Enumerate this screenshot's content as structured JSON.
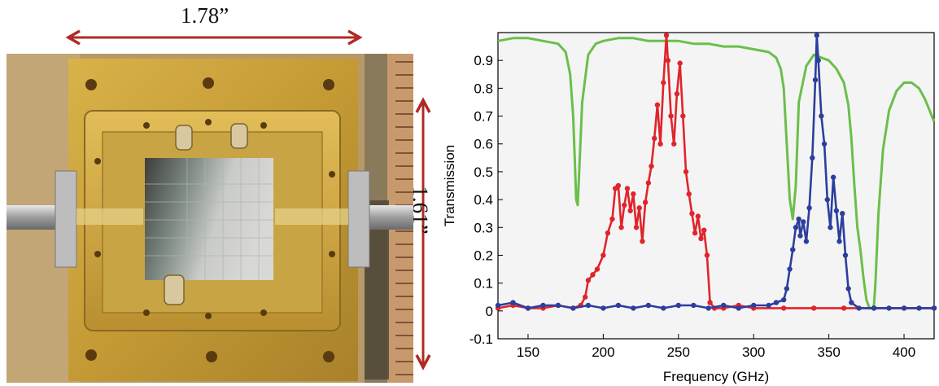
{
  "figure": {
    "width_label": "1.78”",
    "height_label": "1.61”",
    "arrow_color": "#b02a23"
  },
  "photo": {
    "subject": "gold-plated-waveguide-filter-housing"
  },
  "chart_data": {
    "type": "line",
    "title": "",
    "xlabel": "Frequency  (GHz)",
    "ylabel": "Transmission",
    "xlim": [
      130,
      420
    ],
    "ylim": [
      -0.1,
      1.0
    ],
    "xticks": [
      150,
      200,
      250,
      300,
      350,
      400
    ],
    "yticks": [
      -0.1,
      0,
      0.1,
      0.2,
      0.3,
      0.4,
      0.5,
      0.6,
      0.7,
      0.8,
      0.9
    ],
    "ytick_labels": [
      "-0.1",
      "0",
      "0.1",
      "0.2",
      "0.3",
      "0.4",
      "0.5",
      "0.6",
      "0.7",
      "0.8",
      "0.9"
    ],
    "grid": false,
    "legend": "none",
    "background": "#f4f4f4",
    "series": [
      {
        "color": "#6abf4b",
        "marker": false,
        "x": [
          130,
          140,
          150,
          160,
          170,
          175,
          178,
          180,
          181,
          182,
          183,
          184,
          186,
          190,
          195,
          200,
          210,
          220,
          230,
          240,
          250,
          260,
          270,
          280,
          290,
          300,
          310,
          315,
          318,
          320,
          322,
          324,
          326,
          328,
          330,
          335,
          340,
          345,
          350,
          355,
          360,
          363,
          365,
          367,
          369,
          371,
          373,
          375,
          377,
          379,
          380,
          381,
          383,
          386,
          390,
          395,
          400,
          405,
          410,
          414,
          417,
          420
        ],
        "y": [
          0.97,
          0.98,
          0.98,
          0.97,
          0.96,
          0.93,
          0.85,
          0.7,
          0.55,
          0.4,
          0.38,
          0.5,
          0.75,
          0.92,
          0.96,
          0.97,
          0.98,
          0.98,
          0.97,
          0.97,
          0.97,
          0.96,
          0.96,
          0.95,
          0.95,
          0.94,
          0.93,
          0.91,
          0.87,
          0.8,
          0.6,
          0.4,
          0.33,
          0.45,
          0.75,
          0.88,
          0.92,
          0.91,
          0.9,
          0.87,
          0.82,
          0.74,
          0.62,
          0.45,
          0.3,
          0.22,
          0.12,
          0.04,
          0.01,
          0.01,
          0.02,
          0.1,
          0.35,
          0.58,
          0.72,
          0.79,
          0.82,
          0.82,
          0.8,
          0.76,
          0.72,
          0.68
        ]
      },
      {
        "color": "#e0242b",
        "marker": true,
        "x": [
          130,
          140,
          150,
          160,
          170,
          180,
          185,
          188,
          190,
          193,
          196,
          200,
          203,
          206,
          208,
          210,
          212,
          214,
          216,
          218,
          220,
          222,
          224,
          226,
          228,
          230,
          232,
          234,
          236,
          238,
          240,
          242,
          243,
          245,
          247,
          249,
          251,
          253,
          255,
          257,
          259,
          261,
          263,
          265,
          267,
          269,
          271,
          274,
          280,
          290,
          300,
          320,
          340,
          360,
          380,
          400,
          420
        ],
        "y": [
          0.01,
          0.02,
          0.01,
          0.01,
          0.02,
          0.01,
          0.02,
          0.05,
          0.11,
          0.13,
          0.15,
          0.2,
          0.28,
          0.33,
          0.44,
          0.45,
          0.3,
          0.38,
          0.44,
          0.36,
          0.42,
          0.3,
          0.37,
          0.25,
          0.39,
          0.46,
          0.52,
          0.62,
          0.74,
          0.6,
          0.82,
          0.99,
          0.9,
          0.7,
          0.6,
          0.78,
          0.89,
          0.7,
          0.5,
          0.42,
          0.35,
          0.28,
          0.34,
          0.26,
          0.29,
          0.2,
          0.03,
          0.01,
          0.01,
          0.02,
          0.01,
          0.01,
          0.01,
          0.01,
          0.01,
          0.01,
          0.01
        ]
      },
      {
        "color": "#2c3e9e",
        "marker": true,
        "x": [
          130,
          140,
          150,
          160,
          170,
          180,
          190,
          200,
          210,
          220,
          230,
          240,
          250,
          260,
          270,
          280,
          290,
          300,
          310,
          315,
          320,
          322,
          324,
          326,
          328,
          330,
          331,
          333,
          335,
          337,
          339,
          341,
          342,
          343,
          345,
          347,
          349,
          351,
          353,
          355,
          357,
          359,
          361,
          363,
          365,
          370,
          380,
          390,
          400,
          410,
          420
        ],
        "y": [
          0.02,
          0.03,
          0.01,
          0.02,
          0.02,
          0.01,
          0.02,
          0.01,
          0.02,
          0.01,
          0.02,
          0.01,
          0.02,
          0.02,
          0.01,
          0.02,
          0.01,
          0.02,
          0.02,
          0.03,
          0.04,
          0.08,
          0.15,
          0.22,
          0.3,
          0.33,
          0.27,
          0.32,
          0.25,
          0.37,
          0.55,
          0.83,
          0.99,
          0.9,
          0.7,
          0.6,
          0.4,
          0.3,
          0.48,
          0.36,
          0.25,
          0.35,
          0.2,
          0.08,
          0.03,
          0.01,
          0.01,
          0.01,
          0.01,
          0.01,
          0.01
        ]
      }
    ]
  }
}
